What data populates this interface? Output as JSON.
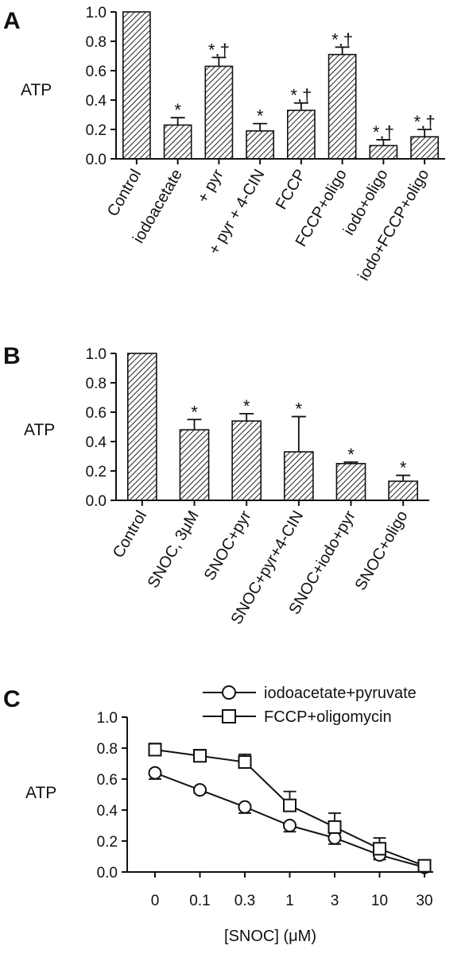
{
  "chart_data": [
    {
      "panel": "A",
      "type": "bar",
      "ylabel": "ATP",
      "ylim": [
        0,
        1.0
      ],
      "yticks": [
        "0.0",
        "0.2",
        "0.4",
        "0.6",
        "0.8",
        "1.0"
      ],
      "categories": [
        "Control",
        "iodoacetate",
        "+ pyr",
        "+ pyr + 4-CIN",
        "FCCP",
        "FCCP+oligo",
        "iodo+oligo",
        "iodo+FCCP+oligo"
      ],
      "values": [
        1.0,
        0.23,
        0.63,
        0.19,
        0.33,
        0.71,
        0.09,
        0.15
      ],
      "errors": [
        0,
        0.05,
        0.06,
        0.05,
        0.05,
        0.05,
        0.04,
        0.05
      ],
      "annotations": [
        "",
        "*",
        "*,†",
        "*",
        "*,†",
        "*,†",
        "*,†",
        "*,†"
      ],
      "pattern": "diagonal hatch"
    },
    {
      "panel": "B",
      "type": "bar",
      "ylabel": "ATP",
      "ylim": [
        0,
        1.0
      ],
      "yticks": [
        "0.0",
        "0.2",
        "0.4",
        "0.6",
        "0.8",
        "1.0"
      ],
      "categories": [
        "Control",
        "SNOC, 3μM",
        "SNOC+pyr",
        "SNOC+pyr+4-CIN",
        "SNOC+iodo+pyr",
        "SNOC+oligo"
      ],
      "values": [
        1.0,
        0.48,
        0.54,
        0.33,
        0.25,
        0.13
      ],
      "errors": [
        0,
        0.07,
        0.05,
        0.24,
        0.01,
        0.04
      ],
      "annotations": [
        "",
        "*",
        "*",
        "*",
        "*",
        "*"
      ],
      "pattern": "diagonal hatch"
    },
    {
      "panel": "C",
      "type": "line",
      "ylabel": "ATP",
      "xlabel": "[SNOC] (μM)",
      "ylim": [
        0,
        1.0
      ],
      "yticks": [
        "0.0",
        "0.2",
        "0.4",
        "0.6",
        "0.8",
        "1.0"
      ],
      "categories": [
        "0",
        "0.1",
        "0.3",
        "1",
        "3",
        "10",
        "30"
      ],
      "legend_position": "top-right",
      "series": [
        {
          "name": "iodoacetate+pyruvate",
          "marker": "circle",
          "values": [
            0.64,
            0.53,
            0.42,
            0.3,
            0.22,
            0.11,
            0.03
          ],
          "errors": [
            0.04,
            0.02,
            0.04,
            0.04,
            0.04,
            0.03,
            0.02
          ]
        },
        {
          "name": "FCCP+oligomycin",
          "marker": "square",
          "values": [
            0.79,
            0.75,
            0.71,
            0.43,
            0.29,
            0.15,
            0.04
          ],
          "errors": [
            0.04,
            0.04,
            0.05,
            0.09,
            0.09,
            0.07,
            0.02
          ]
        }
      ]
    }
  ]
}
